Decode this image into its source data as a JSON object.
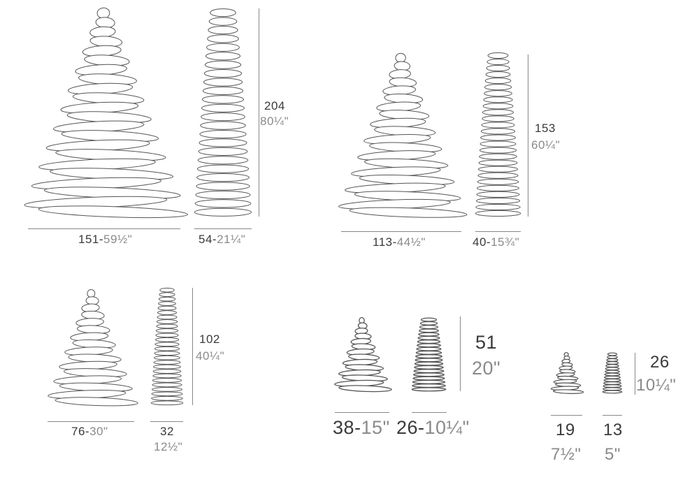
{
  "colors": {
    "metric": "#3a3a3a",
    "imperial": "#8a8a8a",
    "outline": "#555555"
  },
  "sizes": [
    {
      "height_cm": "204",
      "height_in": "80¼\"",
      "cone_width_cm": "151-",
      "cone_width_in": "59½\"",
      "column_width_cm": "54-",
      "column_width_in": "21¼\""
    },
    {
      "height_cm": "153",
      "height_in": "60¼\"",
      "cone_width_cm": "113-",
      "cone_width_in": "44½\"",
      "column_width_cm": "40-",
      "column_width_in": "15¾\""
    },
    {
      "height_cm": "102",
      "height_in": "40¼\"",
      "cone_width_cm": "76-",
      "cone_width_in": "30\"",
      "column_width_cm": "32",
      "column_width_in": "12½\""
    },
    {
      "height_cm": "51",
      "height_in": "20\"",
      "cone_width_cm": "38-",
      "cone_width_in": "15\"",
      "column_width_cm": "26-",
      "column_width_in": "10¼\""
    },
    {
      "height_cm": "26",
      "height_in": "10¼\"",
      "cone_width_cm": "19",
      "cone_width_in": "7½\"",
      "column_width_cm": "13",
      "column_width_in": "5\""
    }
  ]
}
